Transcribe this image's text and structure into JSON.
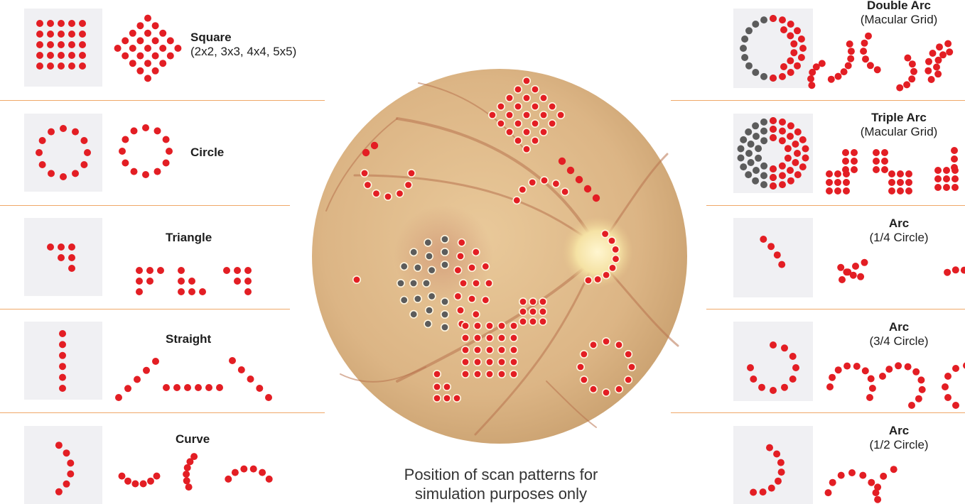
{
  "left_patterns": [
    {
      "id": "square",
      "title": "Square",
      "subtitle": "(2x2, 3x3, 4x4, 5x5)"
    },
    {
      "id": "circle",
      "title": "Circle",
      "subtitle": ""
    },
    {
      "id": "triangle",
      "title": "Triangle",
      "subtitle": ""
    },
    {
      "id": "straight",
      "title": "Straight",
      "subtitle": ""
    },
    {
      "id": "curve",
      "title": "Curve",
      "subtitle": ""
    }
  ],
  "right_patterns": [
    {
      "id": "double-arc",
      "title": "Double Arc",
      "subtitle": "(Macular Grid)"
    },
    {
      "id": "triple-arc",
      "title": "Triple Arc",
      "subtitle": "(Macular Grid)"
    },
    {
      "id": "arc-quarter",
      "title": "Arc",
      "subtitle": "(1/4 Circle)"
    },
    {
      "id": "arc-three-quarter",
      "title": "Arc",
      "subtitle": "(3/4 Circle)"
    },
    {
      "id": "arc-half",
      "title": "Arc",
      "subtitle": "(1/2 Circle)"
    }
  ],
  "caption": "Position of scan patterns for simulation purposes only",
  "colors": {
    "dot_red": "#e31e24",
    "dot_gray": "#5c5c5c",
    "divider": "#f0a868",
    "thumb_bg": "#f0f0f3"
  }
}
